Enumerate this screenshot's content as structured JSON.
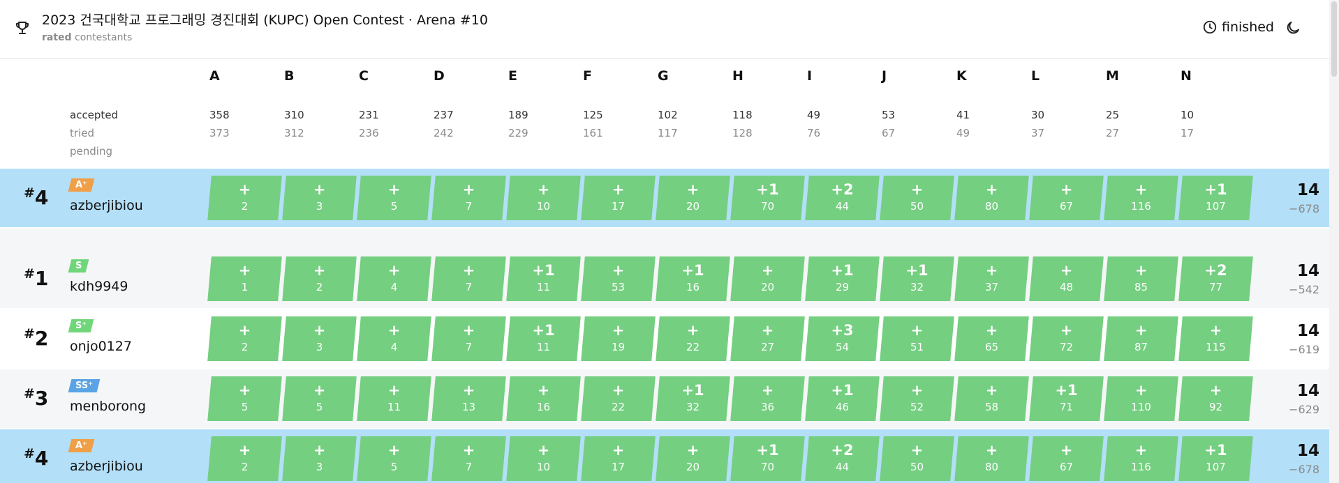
{
  "header": {
    "title": "2023 건국대학교 프로그래밍 경진대회 (KUPC) Open Contest · Arena #10",
    "subtitle_bold": "rated",
    "subtitle_rest": " contestants",
    "status": "finished"
  },
  "problems": {
    "letters": [
      "A",
      "B",
      "C",
      "D",
      "E",
      "F",
      "G",
      "H",
      "I",
      "J",
      "K",
      "L",
      "M",
      "N"
    ],
    "labels": {
      "accepted": "accepted",
      "tried": "tried",
      "pending": "pending"
    },
    "accepted": [
      "358",
      "310",
      "231",
      "237",
      "189",
      "125",
      "102",
      "118",
      "49",
      "53",
      "41",
      "30",
      "25",
      "10"
    ],
    "tried": [
      "373",
      "312",
      "236",
      "242",
      "229",
      "161",
      "117",
      "128",
      "76",
      "67",
      "49",
      "37",
      "27",
      "17"
    ]
  },
  "colors": {
    "accepted_cell": "#74cf80",
    "highlight_row": "#b3dff8",
    "tier_s": "#70d67a",
    "tier_a": "#ef9f47",
    "tier_ss": "#5aa4e6"
  },
  "rows": [
    {
      "rank": "4",
      "tier": "A⁺",
      "tier_color": "#ef9f47",
      "handle": "azberjibiou",
      "marks": [
        "+",
        "+",
        "+",
        "+",
        "+",
        "+",
        "+",
        "+1",
        "+2",
        "+",
        "+",
        "+",
        "+",
        "+1"
      ],
      "times": [
        "2",
        "3",
        "5",
        "7",
        "10",
        "17",
        "20",
        "70",
        "44",
        "50",
        "80",
        "67",
        "116",
        "107"
      ],
      "score": "14",
      "penalty": "−678"
    },
    {
      "rank": "1",
      "tier": "S",
      "tier_color": "#70d67a",
      "handle": "kdh9949",
      "marks": [
        "+",
        "+",
        "+",
        "+",
        "+1",
        "+",
        "+1",
        "+",
        "+1",
        "+1",
        "+",
        "+",
        "+",
        "+2"
      ],
      "times": [
        "1",
        "2",
        "4",
        "7",
        "11",
        "53",
        "16",
        "20",
        "29",
        "32",
        "37",
        "48",
        "85",
        "77"
      ],
      "score": "14",
      "penalty": "−542"
    },
    {
      "rank": "2",
      "tier": "S⁺",
      "tier_color": "#70d67a",
      "handle": "onjo0127",
      "marks": [
        "+",
        "+",
        "+",
        "+",
        "+1",
        "+",
        "+",
        "+",
        "+3",
        "+",
        "+",
        "+",
        "+",
        "+"
      ],
      "times": [
        "2",
        "3",
        "4",
        "7",
        "11",
        "19",
        "22",
        "27",
        "54",
        "51",
        "65",
        "72",
        "87",
        "115"
      ],
      "score": "14",
      "penalty": "−619"
    },
    {
      "rank": "3",
      "tier": "SS⁺",
      "tier_color": "#5aa4e6",
      "handle": "menborong",
      "marks": [
        "+",
        "+",
        "+",
        "+",
        "+",
        "+",
        "+1",
        "+",
        "+1",
        "+",
        "+",
        "+1",
        "+",
        "+"
      ],
      "times": [
        "5",
        "5",
        "11",
        "13",
        "16",
        "22",
        "32",
        "36",
        "46",
        "52",
        "58",
        "71",
        "110",
        "92"
      ],
      "score": "14",
      "penalty": "−629"
    },
    {
      "rank": "4",
      "tier": "A⁺",
      "tier_color": "#ef9f47",
      "handle": "azberjibiou",
      "marks": [
        "+",
        "+",
        "+",
        "+",
        "+",
        "+",
        "+",
        "+1",
        "+2",
        "+",
        "+",
        "+",
        "+",
        "+1"
      ],
      "times": [
        "2",
        "3",
        "5",
        "7",
        "10",
        "17",
        "20",
        "70",
        "44",
        "50",
        "80",
        "67",
        "116",
        "107"
      ],
      "score": "14",
      "penalty": "−678"
    }
  ]
}
